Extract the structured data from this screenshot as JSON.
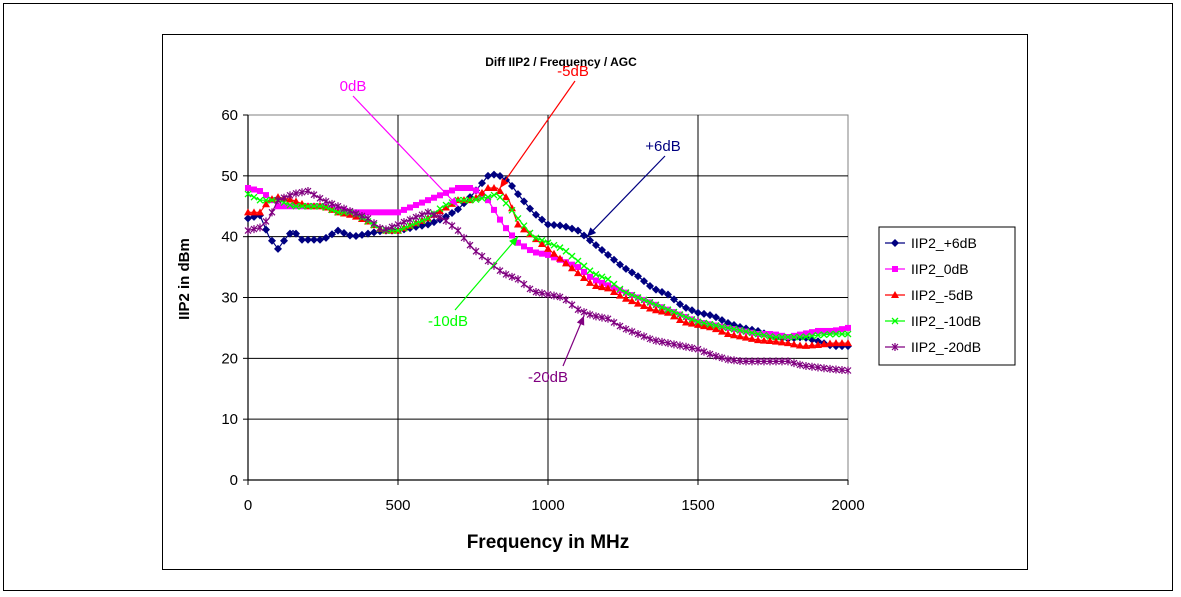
{
  "chart_data": {
    "type": "line",
    "title": "Diff IIP2 / Frequency / AGC",
    "xlabel": "Frequency in MHz",
    "ylabel": "IIP2 in dBm",
    "xlim": [
      0,
      2000
    ],
    "ylim": [
      0,
      60
    ],
    "xticks": [
      "0",
      "500",
      "1000",
      "1500",
      "2000"
    ],
    "yticks": [
      "0",
      "10",
      "20",
      "30",
      "40",
      "50",
      "60"
    ],
    "grid": true,
    "legend_position": "right",
    "series": [
      {
        "name": "IIP2_+6dB",
        "color": "#000080",
        "marker": "diamond",
        "points": [
          [
            0,
            43
          ],
          [
            40,
            43.5
          ],
          [
            70,
            40
          ],
          [
            100,
            38
          ],
          [
            130,
            40
          ],
          [
            150,
            41
          ],
          [
            180,
            39.5
          ],
          [
            250,
            39.5
          ],
          [
            300,
            41
          ],
          [
            350,
            40
          ],
          [
            400,
            40.5
          ],
          [
            450,
            41
          ],
          [
            500,
            41
          ],
          [
            550,
            41.5
          ],
          [
            600,
            42
          ],
          [
            650,
            43
          ],
          [
            700,
            44.5
          ],
          [
            750,
            47
          ],
          [
            800,
            50
          ],
          [
            830,
            50.3
          ],
          [
            870,
            49
          ],
          [
            900,
            47
          ],
          [
            950,
            44
          ],
          [
            1000,
            42
          ],
          [
            1050,
            41.8
          ],
          [
            1100,
            41
          ],
          [
            1150,
            39
          ],
          [
            1200,
            37
          ],
          [
            1250,
            35
          ],
          [
            1300,
            33.5
          ],
          [
            1350,
            31.5
          ],
          [
            1400,
            30.5
          ],
          [
            1450,
            28.5
          ],
          [
            1500,
            27.5
          ],
          [
            1550,
            27
          ],
          [
            1600,
            25.8
          ],
          [
            1650,
            25
          ],
          [
            1700,
            24.5
          ],
          [
            1750,
            23.5
          ],
          [
            1800,
            23.2
          ],
          [
            1850,
            23.5
          ],
          [
            1900,
            22.8
          ],
          [
            1950,
            22
          ],
          [
            2000,
            22
          ]
        ]
      },
      {
        "name": "IIP2_0dB",
        "color": "#ff00ff",
        "marker": "square",
        "points": [
          [
            0,
            48
          ],
          [
            40,
            47.5
          ],
          [
            70,
            46.5
          ],
          [
            100,
            45
          ],
          [
            150,
            45
          ],
          [
            200,
            45
          ],
          [
            250,
            45
          ],
          [
            300,
            44.5
          ],
          [
            350,
            44
          ],
          [
            400,
            44
          ],
          [
            450,
            44
          ],
          [
            500,
            44
          ],
          [
            550,
            45
          ],
          [
            600,
            46
          ],
          [
            650,
            47
          ],
          [
            700,
            48
          ],
          [
            750,
            48
          ],
          [
            800,
            46
          ],
          [
            850,
            42
          ],
          [
            900,
            39
          ],
          [
            950,
            37.5
          ],
          [
            1000,
            37
          ],
          [
            1050,
            36
          ],
          [
            1100,
            35
          ],
          [
            1150,
            33
          ],
          [
            1200,
            32
          ],
          [
            1250,
            31
          ],
          [
            1300,
            30
          ],
          [
            1350,
            29
          ],
          [
            1400,
            28
          ],
          [
            1450,
            27
          ],
          [
            1500,
            26
          ],
          [
            1550,
            25.5
          ],
          [
            1600,
            25
          ],
          [
            1650,
            24.5
          ],
          [
            1700,
            24
          ],
          [
            1750,
            24
          ],
          [
            1800,
            23.5
          ],
          [
            1850,
            24
          ],
          [
            1900,
            24.5
          ],
          [
            1950,
            24.5
          ],
          [
            2000,
            25
          ]
        ]
      },
      {
        "name": "IIP2_-5dB",
        "color": "#ff0000",
        "marker": "triangle",
        "points": [
          [
            0,
            44
          ],
          [
            40,
            44
          ],
          [
            70,
            46
          ],
          [
            100,
            46.5
          ],
          [
            150,
            46
          ],
          [
            200,
            45
          ],
          [
            250,
            45
          ],
          [
            300,
            44
          ],
          [
            350,
            43.5
          ],
          [
            400,
            42.5
          ],
          [
            450,
            41
          ],
          [
            500,
            41
          ],
          [
            550,
            42
          ],
          [
            600,
            43
          ],
          [
            650,
            44.5
          ],
          [
            700,
            46
          ],
          [
            750,
            46
          ],
          [
            800,
            48
          ],
          [
            830,
            48
          ],
          [
            870,
            46
          ],
          [
            900,
            42
          ],
          [
            950,
            40
          ],
          [
            1000,
            38
          ],
          [
            1050,
            36
          ],
          [
            1100,
            34
          ],
          [
            1150,
            32
          ],
          [
            1200,
            31.5
          ],
          [
            1250,
            30
          ],
          [
            1300,
            29
          ],
          [
            1350,
            28
          ],
          [
            1400,
            27.5
          ],
          [
            1450,
            26
          ],
          [
            1500,
            25.5
          ],
          [
            1550,
            25
          ],
          [
            1600,
            24
          ],
          [
            1650,
            23.5
          ],
          [
            1700,
            23
          ],
          [
            1750,
            22.8
          ],
          [
            1800,
            22.5
          ],
          [
            1850,
            22
          ],
          [
            1900,
            22.2
          ],
          [
            1950,
            22.5
          ],
          [
            2000,
            22.5
          ]
        ]
      },
      {
        "name": "IIP2_-10dB",
        "color": "#00ff00",
        "marker": "x",
        "points": [
          [
            0,
            47
          ],
          [
            40,
            46
          ],
          [
            70,
            46
          ],
          [
            100,
            46
          ],
          [
            150,
            45
          ],
          [
            200,
            45
          ],
          [
            250,
            45
          ],
          [
            300,
            44
          ],
          [
            350,
            44
          ],
          [
            400,
            42.5
          ],
          [
            450,
            41
          ],
          [
            500,
            41
          ],
          [
            550,
            42
          ],
          [
            600,
            43
          ],
          [
            650,
            45
          ],
          [
            700,
            46
          ],
          [
            750,
            46
          ],
          [
            800,
            46.5
          ],
          [
            830,
            47
          ],
          [
            870,
            45
          ],
          [
            900,
            43
          ],
          [
            950,
            40
          ],
          [
            1000,
            39
          ],
          [
            1050,
            38
          ],
          [
            1100,
            36
          ],
          [
            1150,
            34
          ],
          [
            1200,
            33
          ],
          [
            1250,
            31
          ],
          [
            1300,
            30
          ],
          [
            1350,
            29
          ],
          [
            1400,
            28
          ],
          [
            1450,
            27
          ],
          [
            1500,
            26
          ],
          [
            1550,
            25.5
          ],
          [
            1600,
            25
          ],
          [
            1650,
            24.5
          ],
          [
            1700,
            24
          ],
          [
            1750,
            23.5
          ],
          [
            1800,
            23.5
          ],
          [
            1850,
            23.5
          ],
          [
            1900,
            23.8
          ],
          [
            1950,
            24
          ],
          [
            2000,
            24
          ]
        ]
      },
      {
        "name": "IIP2_-20dB",
        "color": "#800080",
        "marker": "star",
        "points": [
          [
            0,
            41
          ],
          [
            40,
            41.5
          ],
          [
            70,
            43
          ],
          [
            100,
            46
          ],
          [
            150,
            47
          ],
          [
            200,
            47.5
          ],
          [
            250,
            46
          ],
          [
            300,
            45
          ],
          [
            350,
            44
          ],
          [
            400,
            43
          ],
          [
            450,
            41
          ],
          [
            500,
            42
          ],
          [
            550,
            43
          ],
          [
            600,
            44
          ],
          [
            650,
            43
          ],
          [
            700,
            41
          ],
          [
            750,
            38
          ],
          [
            800,
            36
          ],
          [
            850,
            34
          ],
          [
            900,
            33
          ],
          [
            950,
            31
          ],
          [
            1000,
            30.5
          ],
          [
            1050,
            30
          ],
          [
            1100,
            28
          ],
          [
            1150,
            27
          ],
          [
            1200,
            26.5
          ],
          [
            1250,
            25
          ],
          [
            1300,
            24
          ],
          [
            1350,
            23
          ],
          [
            1400,
            22.5
          ],
          [
            1450,
            22
          ],
          [
            1500,
            21.5
          ],
          [
            1550,
            20.5
          ],
          [
            1600,
            19.8
          ],
          [
            1650,
            19.5
          ],
          [
            1700,
            19.5
          ],
          [
            1750,
            19.5
          ],
          [
            1800,
            19.5
          ],
          [
            1850,
            18.8
          ],
          [
            1900,
            18.5
          ],
          [
            1950,
            18.2
          ],
          [
            2000,
            18
          ]
        ]
      }
    ],
    "annotations": [
      {
        "text": "0dB",
        "color": "#ff00ff",
        "target": [
          700,
          45
        ]
      },
      {
        "text": "-5dB",
        "color": "#ff0000",
        "target": [
          840,
          48
        ]
      },
      {
        "text": "+6dB",
        "color": "#000080",
        "target": [
          1130,
          40
        ]
      },
      {
        "text": "-10dB",
        "color": "#00ff00",
        "target": [
          900,
          40
        ]
      },
      {
        "text": "-20dB",
        "color": "#800080",
        "target": [
          1120,
          27
        ]
      }
    ]
  }
}
